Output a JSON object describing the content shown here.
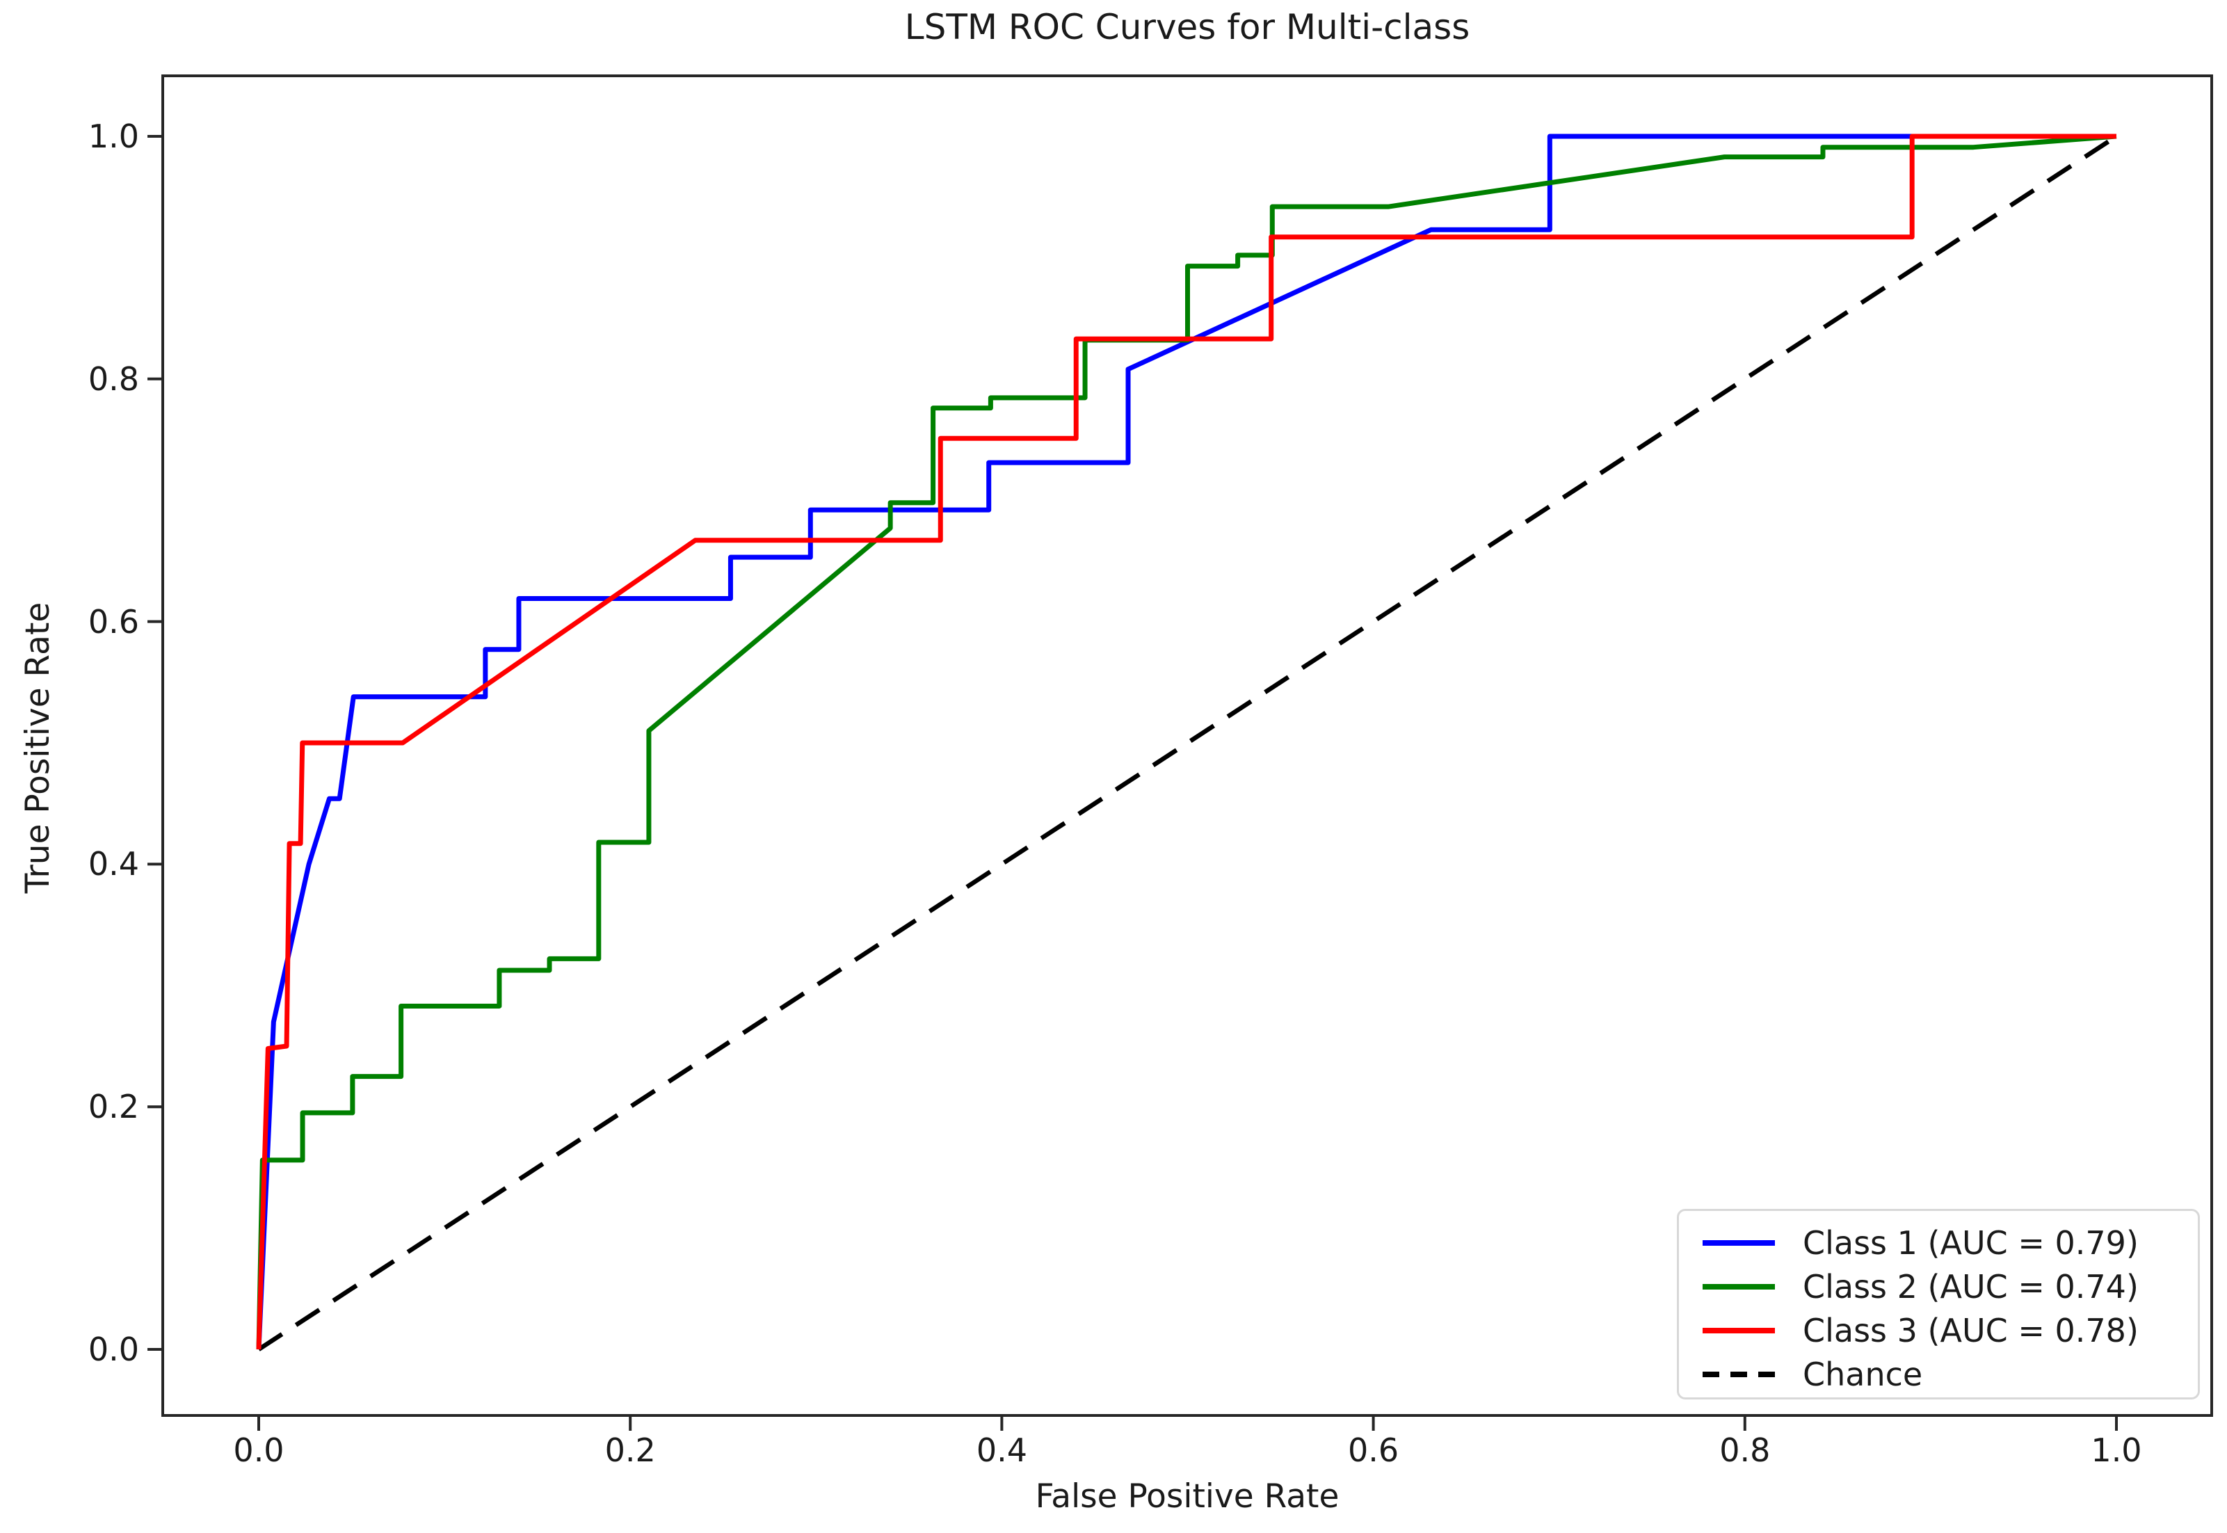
{
  "chart_data": {
    "type": "line",
    "title": "LSTM ROC Curves for Multi-class",
    "xlabel": "False Positive Rate",
    "ylabel": "True Positive Rate",
    "xlim": [
      -0.052,
      1.051
    ],
    "ylim": [
      -0.054,
      1.051
    ],
    "grid": false,
    "legend_position": "lower right",
    "x_ticks": {
      "values": [
        0.0,
        0.2,
        0.4,
        0.6,
        0.8,
        1.0
      ],
      "labels": [
        "0.0",
        "0.2",
        "0.4",
        "0.6",
        "0.8",
        "1.0"
      ]
    },
    "y_ticks": {
      "values": [
        0.0,
        0.2,
        0.4,
        0.6,
        0.8,
        1.0
      ],
      "labels": [
        "0.0",
        "0.2",
        "0.4",
        "0.6",
        "0.8",
        "1.0"
      ]
    },
    "series": [
      {
        "name": "Class 1 (AUC = 0.79)",
        "auc": 0.79,
        "color": "#0000ff",
        "dash": "solid",
        "zorder": 2,
        "points": [
          [
            0,
            0
          ],
          [
            0.008,
            0.27
          ],
          [
            0.027,
            0.4
          ],
          [
            0.038,
            0.454
          ],
          [
            0.0435,
            0.454
          ],
          [
            0.051,
            0.538
          ],
          [
            0.122,
            0.538
          ],
          [
            0.122,
            0.577
          ],
          [
            0.14,
            0.577
          ],
          [
            0.14,
            0.619
          ],
          [
            0.254,
            0.619
          ],
          [
            0.254,
            0.653
          ],
          [
            0.297,
            0.653
          ],
          [
            0.297,
            0.692
          ],
          [
            0.393,
            0.692
          ],
          [
            0.393,
            0.731
          ],
          [
            0.468,
            0.731
          ],
          [
            0.468,
            0.808
          ],
          [
            0.631,
            0.923
          ],
          [
            0.695,
            0.923
          ],
          [
            0.695,
            1.0
          ],
          [
            1.0,
            1.0
          ]
        ]
      },
      {
        "name": "Class 2 (AUC = 0.74)",
        "auc": 0.74,
        "color": "#008000",
        "dash": "solid",
        "zorder": 3,
        "points": [
          [
            0,
            0
          ],
          [
            0.002,
            0.156
          ],
          [
            0.0236,
            0.156
          ],
          [
            0.0236,
            0.195
          ],
          [
            0.0505,
            0.195
          ],
          [
            0.0505,
            0.225
          ],
          [
            0.0766,
            0.225
          ],
          [
            0.0766,
            0.283
          ],
          [
            0.1295,
            0.283
          ],
          [
            0.1295,
            0.3125
          ],
          [
            0.1565,
            0.3125
          ],
          [
            0.1565,
            0.322
          ],
          [
            0.183,
            0.322
          ],
          [
            0.183,
            0.418
          ],
          [
            0.21,
            0.418
          ],
          [
            0.21,
            0.51
          ],
          [
            0.34,
            0.677
          ],
          [
            0.34,
            0.698
          ],
          [
            0.363,
            0.698
          ],
          [
            0.363,
            0.776
          ],
          [
            0.394,
            0.776
          ],
          [
            0.394,
            0.7845
          ],
          [
            0.4448,
            0.7845
          ],
          [
            0.4448,
            0.832
          ],
          [
            0.5,
            0.832
          ],
          [
            0.5,
            0.893
          ],
          [
            0.527,
            0.893
          ],
          [
            0.527,
            0.902
          ],
          [
            0.5456,
            0.902
          ],
          [
            0.5456,
            0.942
          ],
          [
            0.608,
            0.942
          ],
          [
            0.789,
            0.983
          ],
          [
            0.842,
            0.983
          ],
          [
            0.842,
            0.991
          ],
          [
            0.923,
            0.991
          ],
          [
            1.0,
            1.0
          ]
        ]
      },
      {
        "name": "Class 3 (AUC = 0.78)",
        "auc": 0.78,
        "color": "#ff0000",
        "dash": "solid",
        "zorder": 4,
        "points": [
          [
            0,
            0
          ],
          [
            0.005,
            0.248
          ],
          [
            0.015,
            0.25
          ],
          [
            0.0165,
            0.417
          ],
          [
            0.0225,
            0.417
          ],
          [
            0.0235,
            0.5
          ],
          [
            0.0775,
            0.5
          ],
          [
            0.235,
            0.667
          ],
          [
            0.367,
            0.667
          ],
          [
            0.367,
            0.751
          ],
          [
            0.44,
            0.751
          ],
          [
            0.44,
            0.833
          ],
          [
            0.545,
            0.833
          ],
          [
            0.545,
            0.917
          ],
          [
            0.89,
            0.917
          ],
          [
            0.89,
            1.0
          ],
          [
            1.0,
            1.0
          ]
        ]
      },
      {
        "name": "Chance",
        "color": "#000000",
        "dash": "dashed",
        "zorder": 1,
        "points": [
          [
            0,
            0
          ],
          [
            1,
            1
          ]
        ]
      }
    ]
  }
}
